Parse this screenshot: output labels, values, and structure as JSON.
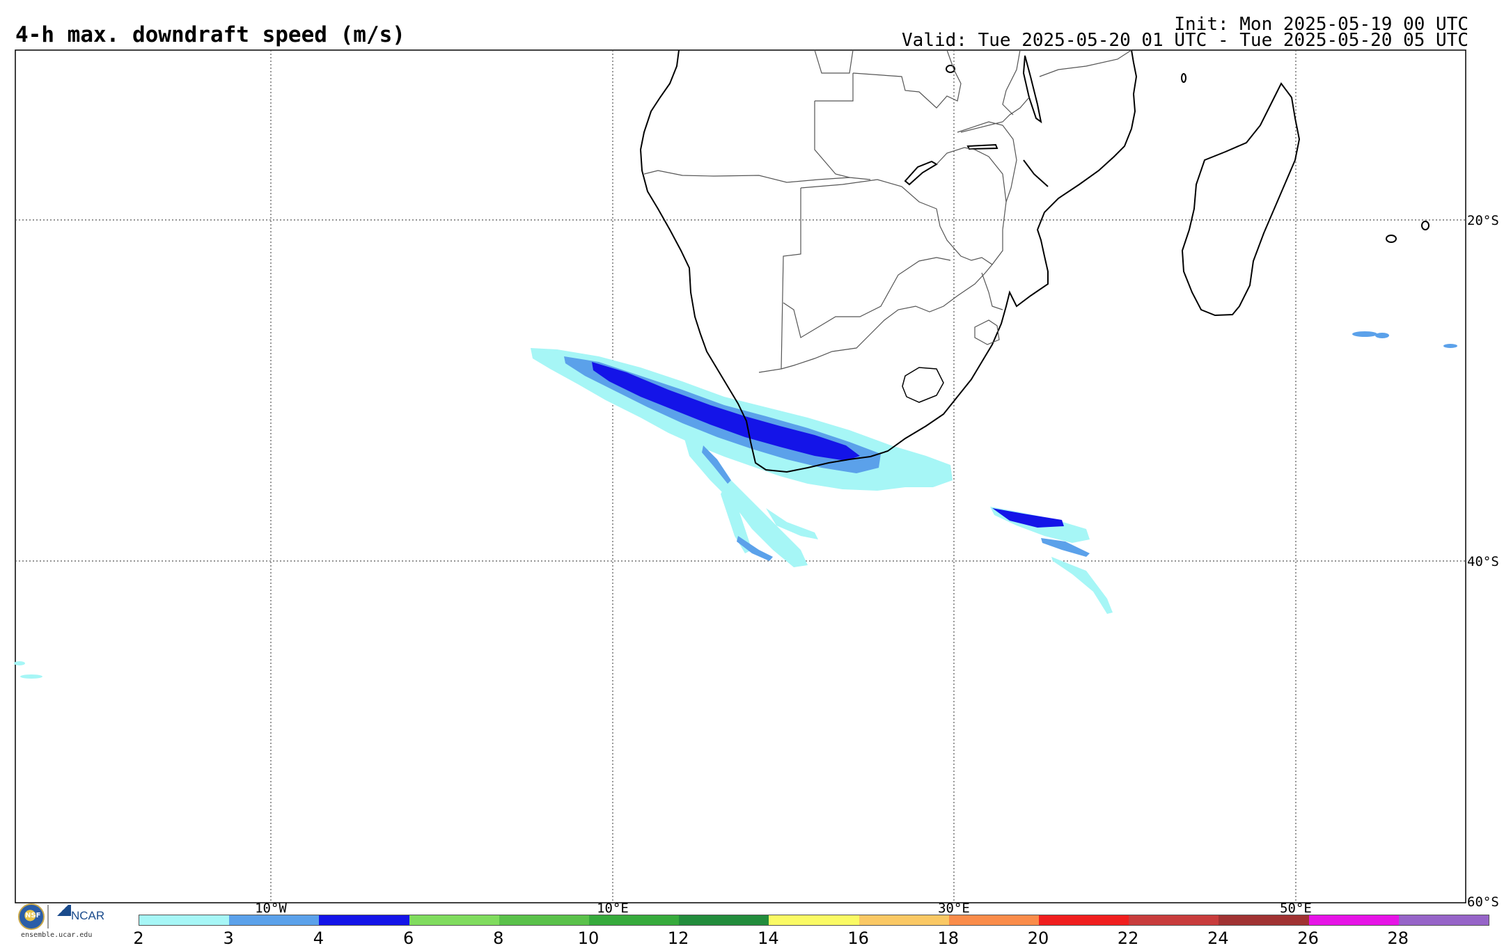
{
  "header": {
    "title": "4-h max. downdraft speed (m/s)",
    "init": "Init: Mon 2025-05-19 00 UTC",
    "valid": "Valid: Tue 2025-05-20 01 UTC - Tue 2025-05-20 05 UTC"
  },
  "map": {
    "lat_labels": [
      "20°S",
      "40°S",
      "60°S"
    ],
    "lon_labels": [
      "10°W",
      "10°E",
      "30°E",
      "50°E"
    ],
    "extent": {
      "lon_min": -25,
      "lon_max": 60,
      "lat_min": -60,
      "lat_max": -10
    },
    "grid_lines": true,
    "region": "Southern Africa and South Atlantic / Indian Ocean"
  },
  "colorbar": {
    "ticks": [
      "2",
      "3",
      "4",
      "6",
      "8",
      "10",
      "12",
      "14",
      "16",
      "18",
      "20",
      "22",
      "24",
      "26",
      "28"
    ],
    "colors": [
      "#a6f6f6",
      "#5ba1ea",
      "#1414e8",
      "#80dc5e",
      "#5ac14a",
      "#36aa3c",
      "#228c3c",
      "#fafa64",
      "#fac864",
      "#fa8c4a",
      "#f01e1e",
      "#c83c3c",
      "#a03232",
      "#e614e6",
      "#9664c8"
    ]
  },
  "logo": {
    "nsf": "NSF",
    "ncar": "NCAR",
    "url": "ensemble.ucar.edu"
  },
  "features": {
    "main_band_color_light": "#a6f6f6",
    "main_band_color_mid": "#5ba1ea",
    "main_band_color_dark": "#1414e8"
  }
}
